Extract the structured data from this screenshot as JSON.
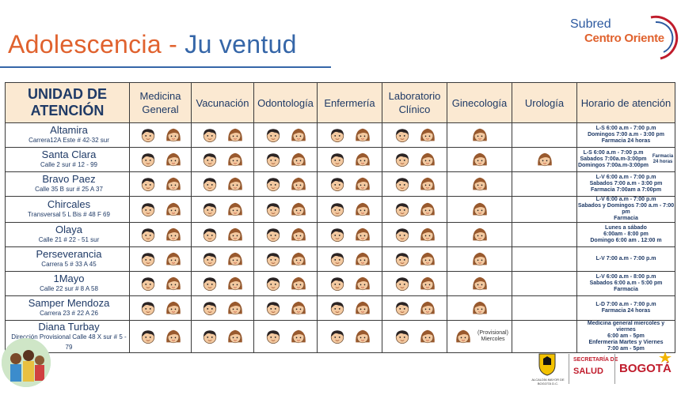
{
  "header": {
    "title_part1": "Adolescencia - ",
    "title_part2": "Ju ventud",
    "logo_line1": "Subred",
    "logo_line2": "Centro Oriente"
  },
  "table": {
    "columns": [
      "UNIDAD DE ATENCIÓN",
      "Medicina General",
      "Vacunación",
      "Odontología",
      "Enfermería",
      "Laboratorio Clínico",
      "Ginecología",
      "Urología",
      "Horario de atención"
    ],
    "rows": [
      {
        "name": "Altamira",
        "address": "Carrera12A Este # 42-32 sur",
        "services": {
          "medicina": "both",
          "vacunacion": "both",
          "odontologia": "both",
          "enfermeria": "both",
          "laboratorio": "both",
          "ginecologia": "female",
          "urologia": "none"
        },
        "hours": [
          "L-S 6:00 a.m - 7:00 p.m",
          "Domingos 7:00 a.m - 3:00 pm",
          "Farmacia 24 horas"
        ]
      },
      {
        "name": "Santa Clara",
        "address": "Calle 2 sur # 12 - 99",
        "services": {
          "medicina": "both",
          "vacunacion": "both",
          "odontologia": "both",
          "enfermeria": "both",
          "laboratorio": "both",
          "ginecologia": "female",
          "urologia": "female"
        },
        "hours": [
          "L-S 6:00 a.m - 7:00 p.m",
          "Sabados 7:00a.m-3:00pm",
          "Domingos 7:00a.m-3:00pm"
        ],
        "hours_side": "Farmacia 24 horas"
      },
      {
        "name": "Bravo Paez",
        "address": "Calle 35 B sur # 25 A 37",
        "services": {
          "medicina": "both",
          "vacunacion": "both",
          "odontologia": "both",
          "enfermeria": "both",
          "laboratorio": "both",
          "ginecologia": "female",
          "urologia": "none"
        },
        "hours": [
          "L-V 6:00 a.m - 7:00 p.m",
          "Sabados 7:00 a.m - 3:00 pm",
          "Farmacia 7:00am a 7:00pm"
        ]
      },
      {
        "name": "Chircales",
        "address": "Transversal 5 L Bis # 48 F 69",
        "services": {
          "medicina": "both",
          "vacunacion": "both",
          "odontologia": "both",
          "enfermeria": "both",
          "laboratorio": "both",
          "ginecologia": "female",
          "urologia": "none"
        },
        "hours": [
          "L-V 6:00 a.m - 7:00 p.m",
          "Sabados y Domingos 7:00 a.m - 7:00 pm",
          "Farmacia"
        ]
      },
      {
        "name": "Olaya",
        "address": "Calle 21 # 22 - 51 sur",
        "services": {
          "medicina": "both",
          "vacunacion": "both",
          "odontologia": "both",
          "enfermeria": "both",
          "laboratorio": "both",
          "ginecologia": "female",
          "urologia": "none"
        },
        "hours": [
          "Lunes a sábado",
          "6:00am - 8:00 pm",
          "Domingo 6:00 am . 12:00 m"
        ]
      },
      {
        "name": "Perseverancia",
        "address": "Carrera 5 # 33 A 45",
        "services": {
          "medicina": "both",
          "vacunacion": "both",
          "odontologia": "both",
          "enfermeria": "both",
          "laboratorio": "both",
          "ginecologia": "female",
          "urologia": "none"
        },
        "hours": [
          "L-V 7:00 a.m - 7:00 p.m"
        ]
      },
      {
        "name": "1Mayo",
        "address": "Calle 22 sur # 8 A 58",
        "services": {
          "medicina": "both",
          "vacunacion": "both",
          "odontologia": "both",
          "enfermeria": "both",
          "laboratorio": "both",
          "ginecologia": "female",
          "urologia": "none"
        },
        "hours": [
          "L-V 6:00 a.m - 8:00 p.m",
          "Sabados 6:00 a.m - 5:00 pm",
          "Farmacia"
        ]
      },
      {
        "name": "Samper Mendoza",
        "address": "Carrera 23 # 22 A 26",
        "services": {
          "medicina": "both",
          "vacunacion": "both",
          "odontologia": "both",
          "enfermeria": "both",
          "laboratorio": "both",
          "ginecologia": "female",
          "urologia": "none"
        },
        "hours": [
          "L-D 7:00 a.m - 7:00 p.m",
          "Farmacia 24 horas"
        ]
      },
      {
        "name": "Diana Turbay",
        "address": "Dirección Provisional Calle 48 X sur # 5 - 79",
        "services": {
          "medicina": "both",
          "vacunacion": "both",
          "odontologia": "both",
          "enfermeria": "both",
          "laboratorio": "both",
          "ginecologia": "female_provisional",
          "urologia": "none"
        },
        "provisional_note": [
          "(Provisional)",
          "Miercoles"
        ],
        "hours": [
          "Medicina general miercoles y viernes",
          "6:00 am - 5pm",
          "Enfermeria Martes y Viernes",
          "7:00 am - 5pm"
        ]
      }
    ]
  },
  "footer": {
    "alcaldia": "ALCALDÍA MAYOR DE BOGOTÁ D.C.",
    "secretaria": "SECRETARÍA DE",
    "salud": "SALUD",
    "bogota": "BOGOTÁ"
  },
  "icons": {
    "male_face": "boy-face-icon",
    "female_face": "girl-face-icon"
  },
  "colors": {
    "title_orange": "#e0622e",
    "title_blue": "#3566a8",
    "header_bg": "#fbe9d2",
    "brand_red": "#c01c2c"
  }
}
